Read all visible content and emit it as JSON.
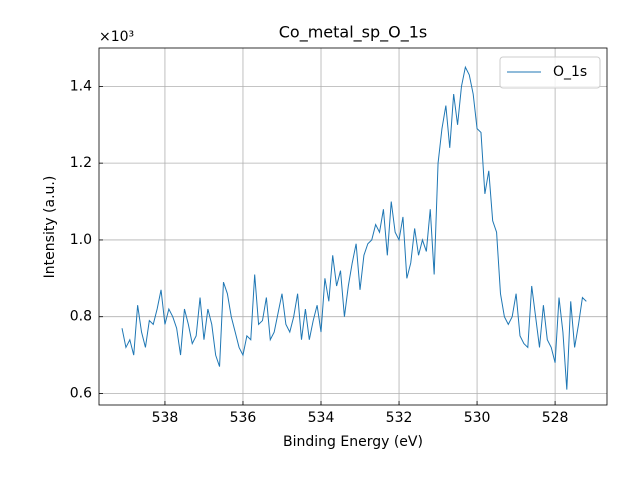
{
  "chart_data": {
    "type": "line",
    "title": "Co_metal_sp_O_1s",
    "x_label": "Binding Energy (eV)",
    "y_label": "Intensity (a.u.)",
    "y_offset_label": "×10³",
    "x": [
      539.1,
      539.0,
      538.9,
      538.8,
      538.7,
      538.6,
      538.5,
      538.4,
      538.3,
      538.2,
      538.1,
      538.0,
      537.9,
      537.8,
      537.7,
      537.6,
      537.5,
      537.4,
      537.3,
      537.2,
      537.1,
      537.0,
      536.9,
      536.8,
      536.7,
      536.6,
      536.5,
      536.4,
      536.3,
      536.2,
      536.1,
      536.0,
      535.9,
      535.8,
      535.7,
      535.6,
      535.5,
      535.4,
      535.3,
      535.2,
      535.1,
      535.0,
      534.9,
      534.8,
      534.7,
      534.6,
      534.5,
      534.4,
      534.3,
      534.2,
      534.1,
      534.0,
      533.9,
      533.8,
      533.7,
      533.6,
      533.5,
      533.4,
      533.3,
      533.2,
      533.1,
      533.0,
      532.9,
      532.8,
      532.7,
      532.6,
      532.5,
      532.4,
      532.3,
      532.2,
      532.1,
      532.0,
      531.9,
      531.8,
      531.7,
      531.6,
      531.5,
      531.4,
      531.3,
      531.2,
      531.1,
      531.0,
      530.9,
      530.8,
      530.7,
      530.6,
      530.5,
      530.4,
      530.3,
      530.2,
      530.1,
      530.0,
      529.9,
      529.8,
      529.7,
      529.6,
      529.5,
      529.4,
      529.3,
      529.2,
      529.1,
      529.0,
      528.9,
      528.8,
      528.7,
      528.6,
      528.5,
      528.4,
      528.3,
      528.2,
      528.1,
      528.0,
      527.9,
      527.8,
      527.7,
      527.6,
      527.5,
      527.4,
      527.3,
      527.2
    ],
    "series": [
      {
        "name": "O_1s",
        "color": "#1f77b4",
        "values": [
          0.77,
          0.72,
          0.74,
          0.7,
          0.83,
          0.76,
          0.72,
          0.79,
          0.78,
          0.82,
          0.87,
          0.78,
          0.82,
          0.8,
          0.77,
          0.7,
          0.82,
          0.78,
          0.73,
          0.75,
          0.85,
          0.74,
          0.82,
          0.78,
          0.7,
          0.67,
          0.89,
          0.86,
          0.8,
          0.76,
          0.72,
          0.7,
          0.75,
          0.74,
          0.91,
          0.78,
          0.79,
          0.85,
          0.74,
          0.76,
          0.81,
          0.86,
          0.78,
          0.76,
          0.8,
          0.86,
          0.74,
          0.82,
          0.74,
          0.79,
          0.83,
          0.76,
          0.9,
          0.84,
          0.96,
          0.88,
          0.92,
          0.8,
          0.88,
          0.94,
          0.99,
          0.87,
          0.96,
          0.99,
          1.0,
          1.04,
          1.02,
          1.08,
          0.96,
          1.1,
          1.02,
          1.0,
          1.06,
          0.9,
          0.94,
          1.03,
          0.96,
          1.0,
          0.97,
          1.08,
          0.91,
          1.2,
          1.29,
          1.35,
          1.24,
          1.38,
          1.3,
          1.4,
          1.45,
          1.43,
          1.38,
          1.29,
          1.28,
          1.12,
          1.18,
          1.05,
          1.02,
          0.86,
          0.8,
          0.78,
          0.8,
          0.86,
          0.75,
          0.73,
          0.72,
          0.88,
          0.8,
          0.72,
          0.83,
          0.74,
          0.72,
          0.68,
          0.85,
          0.76,
          0.61,
          0.84,
          0.72,
          0.78,
          0.85,
          0.84
        ]
      }
    ],
    "xlim": [
      539.69,
      526.67
    ],
    "xticks": [
      538,
      536,
      534,
      532,
      530,
      528
    ],
    "ylim": [
      0.57,
      1.5
    ],
    "yticks": [
      0.6,
      0.8,
      {
        "value": 1,
        "label": "1.0"
      },
      1.2,
      1.4
    ],
    "grid": true,
    "legend": "upper right"
  }
}
